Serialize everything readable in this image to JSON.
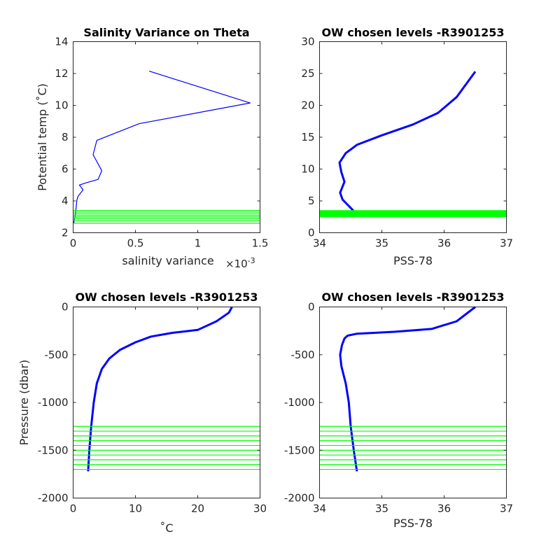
{
  "colors": {
    "profile": "#0000ff",
    "levels": "#00ff00",
    "axes": "#262626"
  },
  "chart_data": [
    {
      "id": "tl",
      "type": "line",
      "title": "Salinity Variance on Theta",
      "xlabel": "salinity variance",
      "x_exponent_label": "×10",
      "x_exponent_power": "-3",
      "ylabel": "Potential temp (˚C)",
      "xlim": [
        0,
        1.5
      ],
      "ylim": [
        2,
        14
      ],
      "xticks": [
        0,
        0.5,
        1,
        1.5
      ],
      "xtick_labels": [
        "0",
        "0.5",
        "1",
        "1.5"
      ],
      "yticks": [
        2,
        4,
        6,
        8,
        10,
        12,
        14
      ],
      "ytick_labels": [
        "2",
        "4",
        "6",
        "8",
        "10",
        "12",
        "14"
      ],
      "series": [
        {
          "x": [
            0.61,
            1.42,
            0.53,
            0.19,
            0.16,
            0.23,
            0.2,
            0.11,
            0.05,
            0.08,
            0.04,
            0.03,
            0.02,
            0.01,
            0.005
          ],
          "y": [
            12.15,
            10.15,
            8.85,
            7.8,
            6.9,
            5.9,
            5.35,
            5.15,
            5.0,
            4.7,
            4.3,
            4.05,
            3.3,
            2.8,
            2.6
          ]
        }
      ],
      "hlines": [
        2.6,
        2.75,
        2.9,
        3.0,
        3.1,
        3.2,
        3.3,
        3.4
      ]
    },
    {
      "id": "tr",
      "type": "line",
      "title": "OW chosen levels -R3901253",
      "xlabel": "PSS-78",
      "ylabel": "",
      "xlim": [
        34,
        37
      ],
      "ylim": [
        0,
        30
      ],
      "xticks": [
        34,
        35,
        36,
        37
      ],
      "xtick_labels": [
        "34",
        "35",
        "36",
        "37"
      ],
      "yticks": [
        0,
        5,
        10,
        15,
        20,
        25,
        30
      ],
      "ytick_labels": [
        "0",
        "5",
        "10",
        "15",
        "20",
        "25",
        "30"
      ],
      "series": [
        {
          "x": [
            34.55,
            34.45,
            34.37,
            34.33,
            34.4,
            34.35,
            34.32,
            34.42,
            34.6,
            35.0,
            35.5,
            35.9,
            36.2,
            36.5
          ],
          "y": [
            3.4,
            4.4,
            5.2,
            6.3,
            8.0,
            9.5,
            11.0,
            12.5,
            13.8,
            15.3,
            17.0,
            18.8,
            21.3,
            25.3
          ]
        }
      ],
      "hlines": [
        2.6,
        2.8,
        3.0,
        3.2,
        3.4
      ]
    },
    {
      "id": "bl",
      "type": "line",
      "title": "OW chosen levels -R3901253",
      "xlabel": "˚C",
      "ylabel": "Pressure (dbar)",
      "xlim": [
        0,
        30
      ],
      "ylim": [
        -2000,
        0
      ],
      "xticks": [
        0,
        10,
        20,
        30
      ],
      "xtick_labels": [
        "0",
        "10",
        "20",
        "30"
      ],
      "yticks": [
        -2000,
        -1500,
        -1000,
        -500,
        0
      ],
      "ytick_labels": [
        "-2000",
        "-1500",
        "-1000",
        "-500",
        "0"
      ],
      "series": [
        {
          "x": [
            2.4,
            2.6,
            2.9,
            3.3,
            3.8,
            4.6,
            5.8,
            7.5,
            10.0,
            12.5,
            16.0,
            20.0,
            23.0,
            25.0,
            25.5
          ],
          "y": [
            -1720,
            -1500,
            -1250,
            -1000,
            -800,
            -650,
            -540,
            -450,
            -370,
            -310,
            -270,
            -240,
            -150,
            -60,
            0
          ]
        }
      ],
      "hlines": [
        -1250,
        -1300,
        -1350,
        -1400,
        -1450,
        -1500,
        -1550,
        -1600,
        -1650,
        -1700
      ]
    },
    {
      "id": "br",
      "type": "line",
      "title": "OW chosen levels -R3901253",
      "xlabel": "PSS-78",
      "ylabel": "",
      "xlim": [
        34,
        37
      ],
      "ylim": [
        -2000,
        0
      ],
      "xticks": [
        34,
        35,
        36,
        37
      ],
      "xtick_labels": [
        "34",
        "35",
        "36",
        "37"
      ],
      "yticks": [
        -2000,
        -1500,
        -1000,
        -500,
        0
      ],
      "ytick_labels": [
        "-2000",
        "-1500",
        "-1000",
        "-500",
        "0"
      ],
      "series": [
        {
          "x": [
            34.6,
            34.55,
            34.5,
            34.47,
            34.42,
            34.35,
            34.33,
            34.36,
            34.4,
            34.45,
            34.6,
            35.2,
            35.8,
            36.2,
            36.5
          ],
          "y": [
            -1720,
            -1500,
            -1250,
            -1000,
            -800,
            -620,
            -500,
            -400,
            -330,
            -300,
            -280,
            -260,
            -230,
            -150,
            0
          ]
        }
      ],
      "hlines": [
        -1250,
        -1300,
        -1350,
        -1400,
        -1450,
        -1500,
        -1550,
        -1600,
        -1650,
        -1700
      ]
    }
  ]
}
